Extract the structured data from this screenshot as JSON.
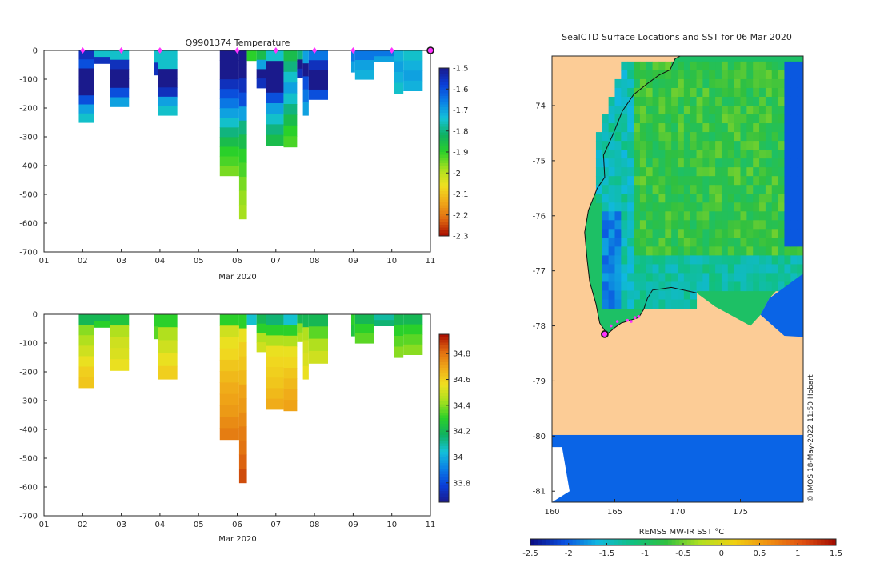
{
  "colors": {
    "temp_scale": [
      "#1a1a8c",
      "#0a3fd9",
      "#0a7fe6",
      "#14c2d9",
      "#10b060",
      "#2ad02a",
      "#a6e01e",
      "#f0e020",
      "#f0a818",
      "#e06a10",
      "#a80a00"
    ],
    "salt_scale": [
      "#1a1a8c",
      "#0a3fd9",
      "#0a7fe6",
      "#14c2d9",
      "#10b060",
      "#2ad02a",
      "#a6e01e",
      "#f0e020",
      "#f0a818",
      "#e06a10",
      "#a80a00"
    ],
    "sst_scale": [
      "#0a0a80",
      "#0a50e0",
      "#10b8e0",
      "#10c080",
      "#30c040",
      "#b0e020",
      "#f0d010",
      "#f09010",
      "#e05010",
      "#a00a00"
    ],
    "land": "#fccc96",
    "ocean_ice": "#0a64e6",
    "marker": "#ff33ff"
  },
  "chart_data": [
    {
      "id": "temperature",
      "type": "heatmap",
      "title": "Q9901374  Temperature",
      "xlabel": "Mar 2020",
      "xticks": [
        "01",
        "02",
        "03",
        "04",
        "05",
        "06",
        "07",
        "08",
        "09",
        "10",
        "11"
      ],
      "xlim": [
        1,
        11
      ],
      "ylim": [
        -700,
        0
      ],
      "yticks": [
        0,
        -100,
        -200,
        -300,
        -400,
        -500,
        -600,
        -700
      ],
      "colorbar": {
        "ticks": [
          "-1.5",
          "-1.6",
          "-1.7",
          "-1.8",
          "-1.9",
          "-2",
          "-2.1",
          "-2.2",
          "-2.3"
        ],
        "range": [
          -2.3,
          -1.5
        ]
      },
      "profiles": [
        {
          "x0": 1.9,
          "x1": 2.3,
          "depth": 250,
          "values": [
            -1.55,
            -1.6,
            -1.5,
            -1.5,
            -1.5,
            -1.6,
            -1.7,
            -1.75
          ]
        },
        {
          "x0": 2.3,
          "x1": 2.7,
          "depth": 45,
          "values": [
            -1.75,
            -1.55
          ]
        },
        {
          "x0": 2.7,
          "x1": 3.2,
          "depth": 195,
          "values": [
            -1.75,
            -1.55,
            -1.5,
            -1.5,
            -1.6,
            -1.7
          ]
        },
        {
          "x0": 3.85,
          "x1": 3.95,
          "depth": 85,
          "values": [
            -1.75,
            -1.55
          ]
        },
        {
          "x0": 3.95,
          "x1": 4.45,
          "depth": 225,
          "values": [
            -1.75,
            -1.75,
            -1.5,
            -1.5,
            -1.55,
            -1.7,
            -1.75
          ]
        },
        {
          "x0": 5.55,
          "x1": 6.05,
          "depth": 435,
          "values": [
            -1.5,
            -1.5,
            -1.5,
            -1.55,
            -1.6,
            -1.65,
            -1.7,
            -1.75,
            -1.8,
            -1.85,
            -1.9,
            -1.92,
            -1.95
          ]
        },
        {
          "x0": 6.05,
          "x1": 6.25,
          "depth": 585,
          "values": [
            -1.5,
            -1.5,
            -1.55,
            -1.6,
            -1.7,
            -1.8,
            -1.85,
            -1.9,
            -1.92,
            -1.95,
            -1.97,
            -1.98
          ]
        },
        {
          "x0": 6.25,
          "x1": 6.5,
          "depth": 35,
          "values": [
            -1.9
          ]
        },
        {
          "x0": 6.5,
          "x1": 6.75,
          "depth": 130,
          "values": [
            -1.85,
            -1.7,
            -1.5,
            -1.55
          ]
        },
        {
          "x0": 6.75,
          "x1": 7.2,
          "depth": 330,
          "values": [
            -1.75,
            -1.5,
            -1.5,
            -1.5,
            -1.6,
            -1.7,
            -1.75,
            -1.8,
            -1.85
          ]
        },
        {
          "x0": 7.2,
          "x1": 7.55,
          "depth": 335,
          "values": [
            -1.85,
            -1.8,
            -1.75,
            -1.7,
            -1.75,
            -1.8,
            -1.85,
            -1.9,
            -1.92
          ]
        },
        {
          "x0": 7.55,
          "x1": 7.7,
          "depth": 95,
          "values": [
            -1.8,
            -1.5,
            -1.55
          ]
        },
        {
          "x0": 7.7,
          "x1": 7.85,
          "depth": 225,
          "values": [
            -1.7,
            -1.5,
            -1.6,
            -1.65,
            -1.7
          ]
        },
        {
          "x0": 7.85,
          "x1": 8.35,
          "depth": 170,
          "values": [
            -1.65,
            -1.55,
            -1.5,
            -1.5,
            -1.6
          ]
        },
        {
          "x0": 8.95,
          "x1": 9.05,
          "depth": 75,
          "values": [
            -1.65,
            -1.7
          ]
        },
        {
          "x0": 9.05,
          "x1": 9.55,
          "depth": 100,
          "values": [
            -1.65,
            -1.7,
            -1.72
          ]
        },
        {
          "x0": 9.55,
          "x1": 10.05,
          "depth": 40,
          "values": [
            -1.65,
            -1.7
          ]
        },
        {
          "x0": 10.05,
          "x1": 10.3,
          "depth": 150,
          "values": [
            -1.72,
            -1.7,
            -1.72,
            -1.75
          ]
        },
        {
          "x0": 10.3,
          "x1": 10.8,
          "depth": 140,
          "values": [
            -1.75,
            -1.72,
            -1.7,
            -1.72
          ]
        }
      ],
      "markers": [
        2,
        3,
        4,
        6,
        7,
        8,
        9,
        10
      ],
      "current_marker": 11
    },
    {
      "id": "salinity",
      "type": "heatmap",
      "title": "",
      "xlabel": "Mar 2020",
      "xticks": [
        "01",
        "02",
        "03",
        "04",
        "05",
        "06",
        "07",
        "08",
        "09",
        "10",
        "11"
      ],
      "xlim": [
        1,
        11
      ],
      "ylim": [
        -700,
        0
      ],
      "yticks": [
        0,
        -100,
        -200,
        -300,
        -400,
        -500,
        -600,
        -700
      ],
      "colorbar": {
        "ticks": [
          "34.8",
          "34.6",
          "34.4",
          "34.2",
          "34",
          "33.8"
        ],
        "range": [
          33.65,
          34.95
        ]
      },
      "profiles": [
        {
          "x0": 1.9,
          "x1": 2.3,
          "depth": 255,
          "values": [
            34.2,
            34.4,
            34.45,
            34.5,
            34.55,
            34.6,
            34.62
          ]
        },
        {
          "x0": 2.3,
          "x1": 2.7,
          "depth": 45,
          "values": [
            34.2,
            34.3
          ]
        },
        {
          "x0": 2.7,
          "x1": 3.2,
          "depth": 195,
          "values": [
            34.25,
            34.45,
            34.5,
            34.52,
            34.55
          ]
        },
        {
          "x0": 3.85,
          "x1": 3.95,
          "depth": 85,
          "values": [
            34.3,
            34.35
          ]
        },
        {
          "x0": 3.95,
          "x1": 4.45,
          "depth": 225,
          "values": [
            34.3,
            34.45,
            34.5,
            34.55,
            34.6
          ]
        },
        {
          "x0": 5.55,
          "x1": 6.05,
          "depth": 435,
          "values": [
            34.3,
            34.5,
            34.55,
            34.58,
            34.62,
            34.65,
            34.68,
            34.7,
            34.72,
            34.75,
            34.78
          ]
        },
        {
          "x0": 6.05,
          "x1": 6.25,
          "depth": 585,
          "values": [
            34.3,
            34.55,
            34.6,
            34.62,
            34.65,
            34.7,
            34.72,
            34.75,
            34.78,
            34.8,
            34.83,
            34.86
          ]
        },
        {
          "x0": 6.25,
          "x1": 6.5,
          "depth": 35,
          "values": [
            34.05
          ]
        },
        {
          "x0": 6.5,
          "x1": 6.75,
          "depth": 130,
          "values": [
            34.2,
            34.3,
            34.45,
            34.5
          ]
        },
        {
          "x0": 6.75,
          "x1": 7.2,
          "depth": 330,
          "values": [
            34.15,
            34.3,
            34.45,
            34.55,
            34.58,
            34.6,
            34.62,
            34.65,
            34.68
          ]
        },
        {
          "x0": 7.2,
          "x1": 7.55,
          "depth": 335,
          "values": [
            34.05,
            34.3,
            34.45,
            34.55,
            34.58,
            34.62,
            34.65,
            34.68,
            34.7
          ]
        },
        {
          "x0": 7.55,
          "x1": 7.7,
          "depth": 95,
          "values": [
            34.2,
            34.4,
            34.45
          ]
        },
        {
          "x0": 7.7,
          "x1": 7.85,
          "depth": 225,
          "values": [
            34.2,
            34.45,
            34.5,
            34.52,
            34.55
          ]
        },
        {
          "x0": 7.85,
          "x1": 8.35,
          "depth": 170,
          "values": [
            34.2,
            34.35,
            34.45,
            34.5
          ]
        },
        {
          "x0": 8.95,
          "x1": 9.05,
          "depth": 75,
          "values": [
            34.3,
            34.25
          ]
        },
        {
          "x0": 9.05,
          "x1": 9.55,
          "depth": 100,
          "values": [
            34.2,
            34.3,
            34.35
          ]
        },
        {
          "x0": 9.55,
          "x1": 10.05,
          "depth": 40,
          "values": [
            34.1,
            34.15
          ]
        },
        {
          "x0": 10.05,
          "x1": 10.3,
          "depth": 150,
          "values": [
            34.2,
            34.3,
            34.35,
            34.4
          ]
        },
        {
          "x0": 10.3,
          "x1": 10.8,
          "depth": 140,
          "values": [
            34.2,
            34.3,
            34.35,
            34.4
          ]
        }
      ]
    },
    {
      "id": "sst_map",
      "type": "heatmap",
      "title": "SealCTD Surface Locations and SST for 06 Mar 2020",
      "xlabel": "",
      "xticks": [
        "160",
        "165",
        "170",
        "175"
      ],
      "xlim": [
        160,
        180
      ],
      "yticks": [
        "-74",
        "-75",
        "-76",
        "-77",
        "-78",
        "-79",
        "-80",
        "-81"
      ],
      "ylim": [
        -81.2,
        -73.1
      ],
      "colorbar": {
        "label": "REMSS MW-IR SST °C",
        "ticks": [
          "-2.5",
          "-2",
          "-1.5",
          "-1",
          "-0.5",
          "0",
          "0.5",
          "1",
          "1.5"
        ],
        "range": [
          -2.5,
          1.5
        ]
      },
      "credit": "© IMOS 18-May-2022 11:50 Hobart",
      "track_points": [
        [
          164.3,
          -78.15
        ],
        [
          164.7,
          -78.0
        ],
        [
          165.2,
          -77.92
        ],
        [
          166.0,
          -77.9
        ],
        [
          166.3,
          -77.92
        ],
        [
          166.6,
          -77.85
        ],
        [
          166.9,
          -77.83
        ]
      ],
      "current_position": [
        164.2,
        -78.15
      ]
    }
  ]
}
